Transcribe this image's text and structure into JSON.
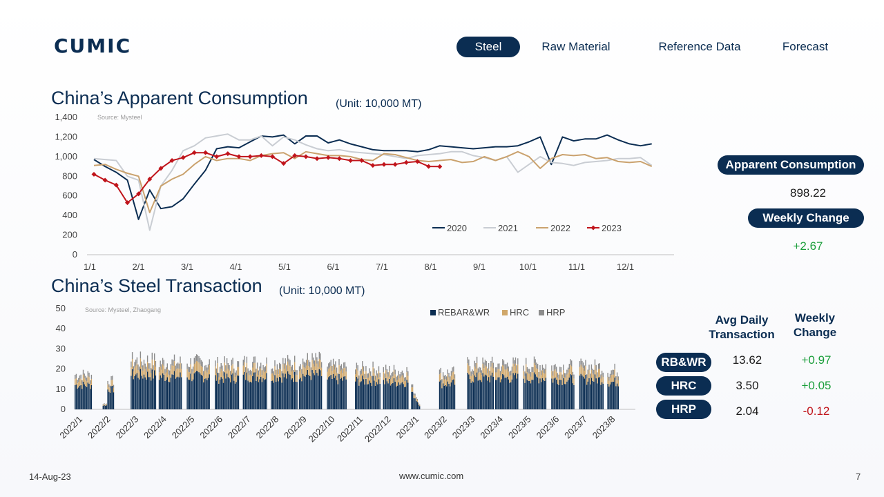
{
  "header": {
    "logo_text": "CUMIC",
    "nav": [
      {
        "label": "Steel",
        "active": true
      },
      {
        "label": "Raw Material",
        "active": false
      },
      {
        "label": "Reference Data",
        "active": false
      },
      {
        "label": "Forecast",
        "active": false
      }
    ]
  },
  "consumption": {
    "title": "China’s Apparent Consumption",
    "unit": "(Unit: 10,000 MT)",
    "source": "Source: Mysteel",
    "side": {
      "label1": "Apparent Consumption",
      "value1": "898.22",
      "label2": "Weekly Change",
      "value2": "+2.67"
    }
  },
  "transaction": {
    "title": "China’s Steel Transaction",
    "unit": "(Unit: 10,000 MT)",
    "source": "Source: Mysteel, Zhaogang",
    "table": {
      "col1": "Avg Daily Transaction",
      "col2": "Weekly Change",
      "rows": [
        {
          "label": "RB&WR",
          "avg": "13.62",
          "change": "+0.97",
          "dir": "pos"
        },
        {
          "label": "HRC",
          "avg": "3.50",
          "change": "+0.05",
          "dir": "pos"
        },
        {
          "label": "HRP",
          "avg": "2.04",
          "change": "-0.12",
          "dir": "neg"
        }
      ]
    }
  },
  "footer": {
    "date": "14-Aug-23",
    "url": "www.cumic.com",
    "page": "7"
  },
  "colors": {
    "navy": "#0b2d52",
    "s2020": "#0b2d52",
    "s2021": "#c9cdd3",
    "s2022": "#caa26e",
    "s2023": "#c0141b",
    "hrc": "#d0a76a",
    "hrp": "#8c8c8c",
    "positive": "#1a9e3a",
    "negative": "#c0141b"
  },
  "chart_data": [
    {
      "type": "line",
      "x_ticks": [
        "1/1",
        "2/1",
        "3/1",
        "4/1",
        "5/1",
        "6/1",
        "7/1",
        "8/1",
        "9/1",
        "10/1",
        "11/1",
        "12/1"
      ],
      "ylim": [
        0,
        1400
      ],
      "y_ticks": [
        "0",
        "200",
        "400",
        "600",
        "800",
        "1,000",
        "1,200",
        "1,400"
      ],
      "legend_position": "bottom-right",
      "series": [
        {
          "name": "2020",
          "values": [
            970,
            900,
            840,
            760,
            360,
            660,
            470,
            490,
            570,
            720,
            860,
            1080,
            1100,
            1090,
            1150,
            1210,
            1200,
            1220,
            1130,
            1210,
            1210,
            1140,
            1170,
            1130,
            1100,
            1070,
            1060,
            1060,
            1060,
            1050,
            1070,
            1110,
            1100,
            1090,
            1080,
            1090,
            1100,
            1100,
            1110,
            1150,
            1200,
            920,
            1200,
            1160,
            1180,
            1180,
            1220,
            1170,
            1130,
            1110,
            1130
          ]
        },
        {
          "name": "2021",
          "values": [
            980,
            970,
            960,
            800,
            760,
            250,
            700,
            860,
            1060,
            1110,
            1190,
            1210,
            1230,
            1170,
            1170,
            1210,
            1110,
            1200,
            1170,
            1120,
            1080,
            1060,
            1070,
            1050,
            1040,
            1030,
            1020,
            1000,
            980,
            1010,
            1020,
            1030,
            1050,
            1050,
            1010,
            990,
            960,
            1000,
            840,
            920,
            1000,
            940,
            930,
            910,
            940,
            950,
            960,
            980,
            980,
            990,
            910
          ]
        },
        {
          "name": "2022",
          "values": [
            910,
            920,
            870,
            830,
            800,
            430,
            700,
            770,
            820,
            920,
            1000,
            960,
            980,
            980,
            960,
            1010,
            1030,
            1040,
            980,
            1050,
            1030,
            1010,
            1010,
            1000,
            970,
            960,
            1030,
            1020,
            990,
            960,
            950,
            960,
            970,
            940,
            950,
            1000,
            960,
            1000,
            1050,
            1000,
            880,
            980,
            1020,
            1010,
            1020,
            980,
            990,
            950,
            940,
            950,
            900
          ]
        },
        {
          "name": "2023",
          "values": [
            820,
            760,
            710,
            530,
            620,
            770,
            880,
            960,
            990,
            1040,
            1040,
            1000,
            1030,
            1000,
            1000,
            1010,
            1000,
            930,
            1010,
            1000,
            980,
            990,
            980,
            960,
            960,
            910,
            920,
            920,
            940,
            950,
            900,
            898.22
          ]
        }
      ]
    },
    {
      "type": "bar",
      "stacked": true,
      "ylim": [
        0,
        50
      ],
      "y_ticks": [
        "0",
        "10",
        "20",
        "30",
        "40",
        "50"
      ],
      "x_ticks": [
        "2022/1",
        "2022/2",
        "2022/3",
        "2022/4",
        "2022/5",
        "2022/6",
        "2022/7",
        "2022/8",
        "2022/9",
        "2022/10",
        "2022/11",
        "2022/12",
        "2023/1",
        "2023/2",
        "2023/3",
        "2023/4",
        "2023/5",
        "2023/6",
        "2023/7",
        "2023/8"
      ],
      "legend_position": "top-center",
      "series_names": [
        "REBAR&WR",
        "HRC",
        "HRP"
      ],
      "month_profiles": [
        {
          "month": "2022/1",
          "days": 15,
          "total": 17
        },
        {
          "month": "2022/2",
          "days": 10,
          "total": 14
        },
        {
          "month": "2022/3",
          "days": 22,
          "total": 24
        },
        {
          "month": "2022/4",
          "days": 20,
          "total": 23
        },
        {
          "month": "2022/5",
          "days": 20,
          "total": 23
        },
        {
          "month": "2022/6",
          "days": 21,
          "total": 22
        },
        {
          "month": "2022/7",
          "days": 21,
          "total": 23
        },
        {
          "month": "2022/8",
          "days": 23,
          "total": 23
        },
        {
          "month": "2022/9",
          "days": 20,
          "total": 24
        },
        {
          "month": "2022/10",
          "days": 17,
          "total": 21
        },
        {
          "month": "2022/11",
          "days": 22,
          "total": 20
        },
        {
          "month": "2022/12",
          "days": 22,
          "total": 19
        },
        {
          "month": "2023/1",
          "days": 8,
          "total": 12
        },
        {
          "month": "2023/2",
          "days": 14,
          "total": 18
        },
        {
          "month": "2023/3",
          "days": 23,
          "total": 22
        },
        {
          "month": "2023/4",
          "days": 20,
          "total": 22
        },
        {
          "month": "2023/5",
          "days": 20,
          "total": 22
        },
        {
          "month": "2023/6",
          "days": 20,
          "total": 21
        },
        {
          "month": "2023/7",
          "days": 21,
          "total": 21
        },
        {
          "month": "2023/8",
          "days": 10,
          "total": 19.2
        }
      ]
    }
  ]
}
